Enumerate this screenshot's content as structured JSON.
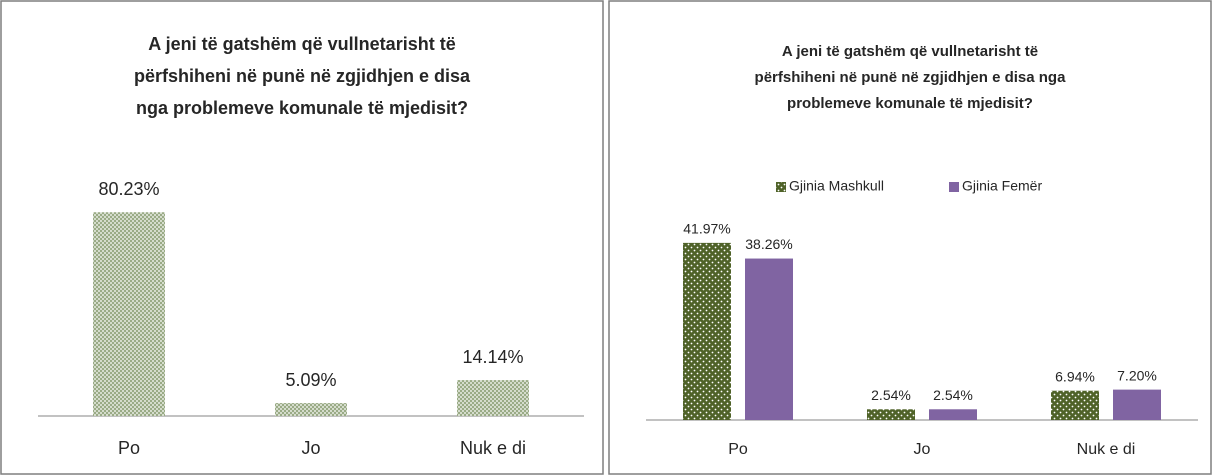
{
  "chart_data": [
    {
      "type": "bar",
      "title": [
        "A jeni të gatshëm që vullnetarisht të",
        "përfshiheni në punë në zgjidhjen e disa",
        "nga problemeve komunale të mjedisit?"
      ],
      "categories": [
        "Po",
        "Jo",
        "Nuk e di"
      ],
      "series": [
        {
          "name": null,
          "color": "#9aab86",
          "values": [
            80.23,
            5.09,
            14.14
          ],
          "value_labels": [
            "80.23%",
            "5.09%",
            "14.14%"
          ]
        }
      ]
    },
    {
      "type": "bar",
      "title": [
        "A jeni të gatshëm që vullnetarisht të",
        "përfshiheni në punë në zgjidhjen e disa nga",
        "problemeve komunale të mjedisit?"
      ],
      "categories": [
        "Po",
        "Jo",
        "Nuk e di"
      ],
      "legend": "top",
      "series": [
        {
          "name": "Gjinia Mashkull",
          "color": "#4f6228",
          "values": [
            41.97,
            2.54,
            6.94
          ],
          "value_labels": [
            "41.97%",
            "2.54%",
            "6.94%"
          ]
        },
        {
          "name": "Gjinia Femër",
          "color": "#8064a2",
          "values": [
            38.26,
            2.54,
            7.2
          ],
          "value_labels": [
            "38.26%",
            "2.54%",
            "7.20%"
          ]
        }
      ]
    }
  ]
}
